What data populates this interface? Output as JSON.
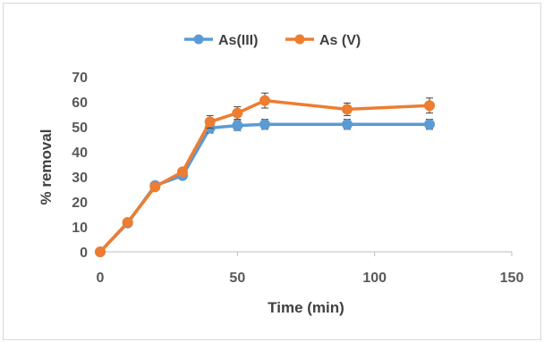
{
  "chart_data": {
    "type": "line",
    "xlabel": "Time (min)",
    "ylabel": "% removal",
    "xlim": [
      0,
      150
    ],
    "ylim": [
      0,
      70
    ],
    "xticks": [
      0,
      50,
      100,
      150
    ],
    "yticks": [
      0,
      10,
      20,
      30,
      40,
      50,
      60,
      70
    ],
    "grid": false,
    "legend_position": "top",
    "series": [
      {
        "name": "As(III)",
        "color": "#5b9bd5",
        "x": [
          0,
          10,
          20,
          30,
          40,
          50,
          60,
          90,
          120
        ],
        "y": [
          0,
          11.5,
          26.5,
          30.5,
          49.5,
          50.5,
          51,
          51,
          51
        ],
        "error": [
          0,
          0.8,
          1.2,
          1.2,
          2.0,
          2.0,
          2.0,
          2.0,
          2.0
        ]
      },
      {
        "name": "As (V)",
        "color": "#ed7d31",
        "x": [
          0,
          10,
          20,
          30,
          40,
          50,
          60,
          90,
          120
        ],
        "y": [
          0,
          11.8,
          26,
          32,
          52,
          55.5,
          60.5,
          57,
          58.5
        ],
        "error": [
          0,
          0.8,
          1.2,
          1.2,
          2.5,
          2.5,
          3.0,
          2.5,
          3.0
        ]
      }
    ]
  }
}
